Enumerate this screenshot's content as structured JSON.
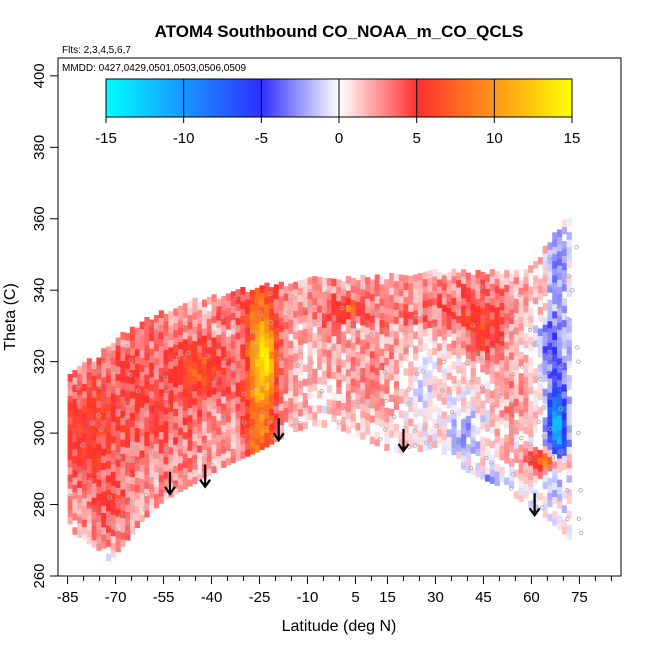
{
  "chart_data": {
    "type": "heatmap",
    "title": "ATOM4 Southbound CO_NOAA_m_CO_QCLS",
    "flights_label": "Flts: 2,3,4,5,6,7",
    "dates_label": "MMDD: 0427,0429,0501,0503,0506,0509",
    "xlabel": "Latitude (deg N)",
    "ylabel": "Theta (C)",
    "xlim": [
      -88,
      88
    ],
    "ylim": [
      260,
      405
    ],
    "x_ticks": [
      -85,
      -70,
      -55,
      -40,
      -25,
      -10,
      5,
      15,
      30,
      45,
      60,
      75
    ],
    "x_tick_labels": [
      "-85",
      "-70",
      "-55",
      "-40",
      "-25",
      "-10",
      "5",
      "15",
      "30",
      "45",
      "60",
      "75"
    ],
    "x_minor_ticks": [
      -80,
      -75,
      -65,
      -60,
      -50,
      -45,
      -35,
      -30,
      -20,
      -15,
      -5,
      0,
      10,
      20,
      25,
      35,
      40,
      50,
      55,
      65,
      70,
      80,
      85
    ],
    "y_ticks": [
      260,
      280,
      300,
      320,
      340,
      360,
      380,
      400
    ],
    "y_tick_labels": [
      "260",
      "280",
      "300",
      "320",
      "340",
      "360",
      "380",
      "400"
    ],
    "colorbar": {
      "min": -15,
      "max": 15,
      "ticks": [
        -15,
        -10,
        -5,
        0,
        5,
        10,
        15
      ],
      "tick_labels": [
        "-15",
        "-10",
        "-5",
        "0",
        "5",
        "10",
        "15"
      ],
      "colors": [
        "#00ffff",
        "#2f2fff",
        "#ffffff",
        "#ff2f2f",
        "#ffff00"
      ]
    },
    "arrows_lat": [
      -53,
      -42,
      -19,
      20,
      61
    ],
    "arrows_theta": [
      283,
      285,
      298,
      295,
      277
    ],
    "boundary": {
      "lat": [
        -85,
        -80,
        -75,
        -72,
        -68,
        -62,
        -55,
        -45,
        -35,
        -25,
        -15,
        -8,
        0,
        8,
        15,
        22,
        30,
        40,
        50,
        58,
        65,
        70,
        72
      ],
      "theta_bottom": [
        273,
        270,
        267,
        264,
        268,
        275,
        281,
        286,
        291,
        295,
        300,
        302,
        301,
        298,
        295,
        294,
        296,
        289,
        285,
        280,
        276,
        272,
        270
      ],
      "theta_top": [
        315,
        318,
        321,
        324,
        327,
        330,
        333,
        336,
        338,
        340,
        341,
        342,
        342,
        343,
        343,
        344,
        344,
        344,
        344,
        345,
        352,
        358,
        360
      ]
    },
    "anomalies": [
      {
        "lat": -25,
        "theta": 310,
        "value": 8,
        "w": 5,
        "h": 34
      },
      {
        "lat": -23,
        "theta": 322,
        "value": 6,
        "w": 4,
        "h": 10
      },
      {
        "lat": -60,
        "theta": 310,
        "value": 3,
        "w": 22,
        "h": 25
      },
      {
        "lat": -42,
        "theta": 318,
        "value": 4,
        "w": 8,
        "h": 8
      },
      {
        "lat": -80,
        "theta": 300,
        "value": 3,
        "w": 10,
        "h": 15
      },
      {
        "lat": -72,
        "theta": 278,
        "value": 2,
        "w": 8,
        "h": 12
      },
      {
        "lat": 3,
        "theta": 335,
        "value": 6,
        "w": 4,
        "h": 3
      },
      {
        "lat": 10,
        "theta": 318,
        "value": 2,
        "w": 15,
        "h": 18
      },
      {
        "lat": 40,
        "theta": 335,
        "value": 2,
        "w": 20,
        "h": 10
      },
      {
        "lat": 45,
        "theta": 327,
        "value": 4,
        "w": 6,
        "h": 6
      },
      {
        "lat": 65,
        "theta": 292,
        "value": 10,
        "w": 6,
        "h": 3
      },
      {
        "lat": 68,
        "theta": 302,
        "value": -12,
        "w": 3,
        "h": 12
      },
      {
        "lat": 66,
        "theta": 325,
        "value": -4,
        "w": 5,
        "h": 10
      },
      {
        "lat": 68,
        "theta": 345,
        "value": -3,
        "w": 3,
        "h": 12
      },
      {
        "lat": 45,
        "theta": 285,
        "value": -4,
        "w": 6,
        "h": 4
      },
      {
        "lat": 40,
        "theta": 300,
        "value": -3,
        "w": 6,
        "h": 6
      },
      {
        "lat": -72,
        "theta": 264,
        "value": -4,
        "w": 8,
        "h": 3
      },
      {
        "lat": -5,
        "theta": 310,
        "value": -2,
        "w": 4,
        "h": 6
      },
      {
        "lat": 25,
        "theta": 312,
        "value": -2,
        "w": 5,
        "h": 8
      },
      {
        "lat": 55,
        "theta": 310,
        "value": 2,
        "w": 8,
        "h": 15
      }
    ]
  }
}
